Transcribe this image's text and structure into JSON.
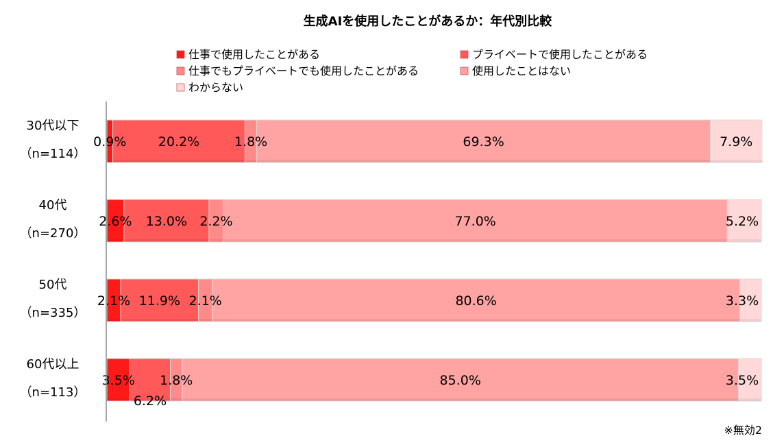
{
  "chart_data": {
    "type": "bar",
    "orientation": "horizontal",
    "stacked": "100%",
    "title": "生成AIを使用したことがあるか：年代別比較",
    "categories": [
      {
        "label": "30代以下",
        "n": "（n=114）"
      },
      {
        "label": "40代",
        "n": "（n=270）"
      },
      {
        "label": "50代",
        "n": "（n=335）"
      },
      {
        "label": "60代以上",
        "n": "（n=113）"
      }
    ],
    "series": [
      {
        "name": "仕事で使用したことがある",
        "color": "#ff1a1a",
        "values": [
          0.9,
          2.6,
          2.1,
          3.5
        ],
        "labels": [
          "0.9%",
          "2.6%",
          "2.1%",
          "3.5%"
        ]
      },
      {
        "name": "プライベートで使用したことがある",
        "color": "#ff5959",
        "values": [
          20.2,
          13.0,
          11.9,
          6.2
        ],
        "labels": [
          "20.2%",
          "13.0%",
          "11.9%",
          "6.2%"
        ]
      },
      {
        "name": "仕事でもプライベートでも使用したことがある",
        "color": "#ff8a8a",
        "values": [
          1.8,
          2.2,
          2.1,
          1.8
        ],
        "labels": [
          "1.8%",
          "2.2%",
          "2.1%",
          "1.8%"
        ]
      },
      {
        "name": "使用したことはない",
        "color": "#ffa3a3",
        "values": [
          69.3,
          77.0,
          80.6,
          85.0
        ],
        "labels": [
          "69.3%",
          "77.0%",
          "80.6%",
          "85.0%"
        ]
      },
      {
        "name": "わからない",
        "color": "#ffd9d9",
        "values": [
          7.9,
          5.2,
          3.3,
          3.5
        ],
        "labels": [
          "7.9%",
          "5.2%",
          "3.3%",
          "3.5%"
        ]
      }
    ],
    "xlim": [
      0,
      100
    ],
    "grid": false,
    "legend_position": "top"
  },
  "note": "※無効2"
}
